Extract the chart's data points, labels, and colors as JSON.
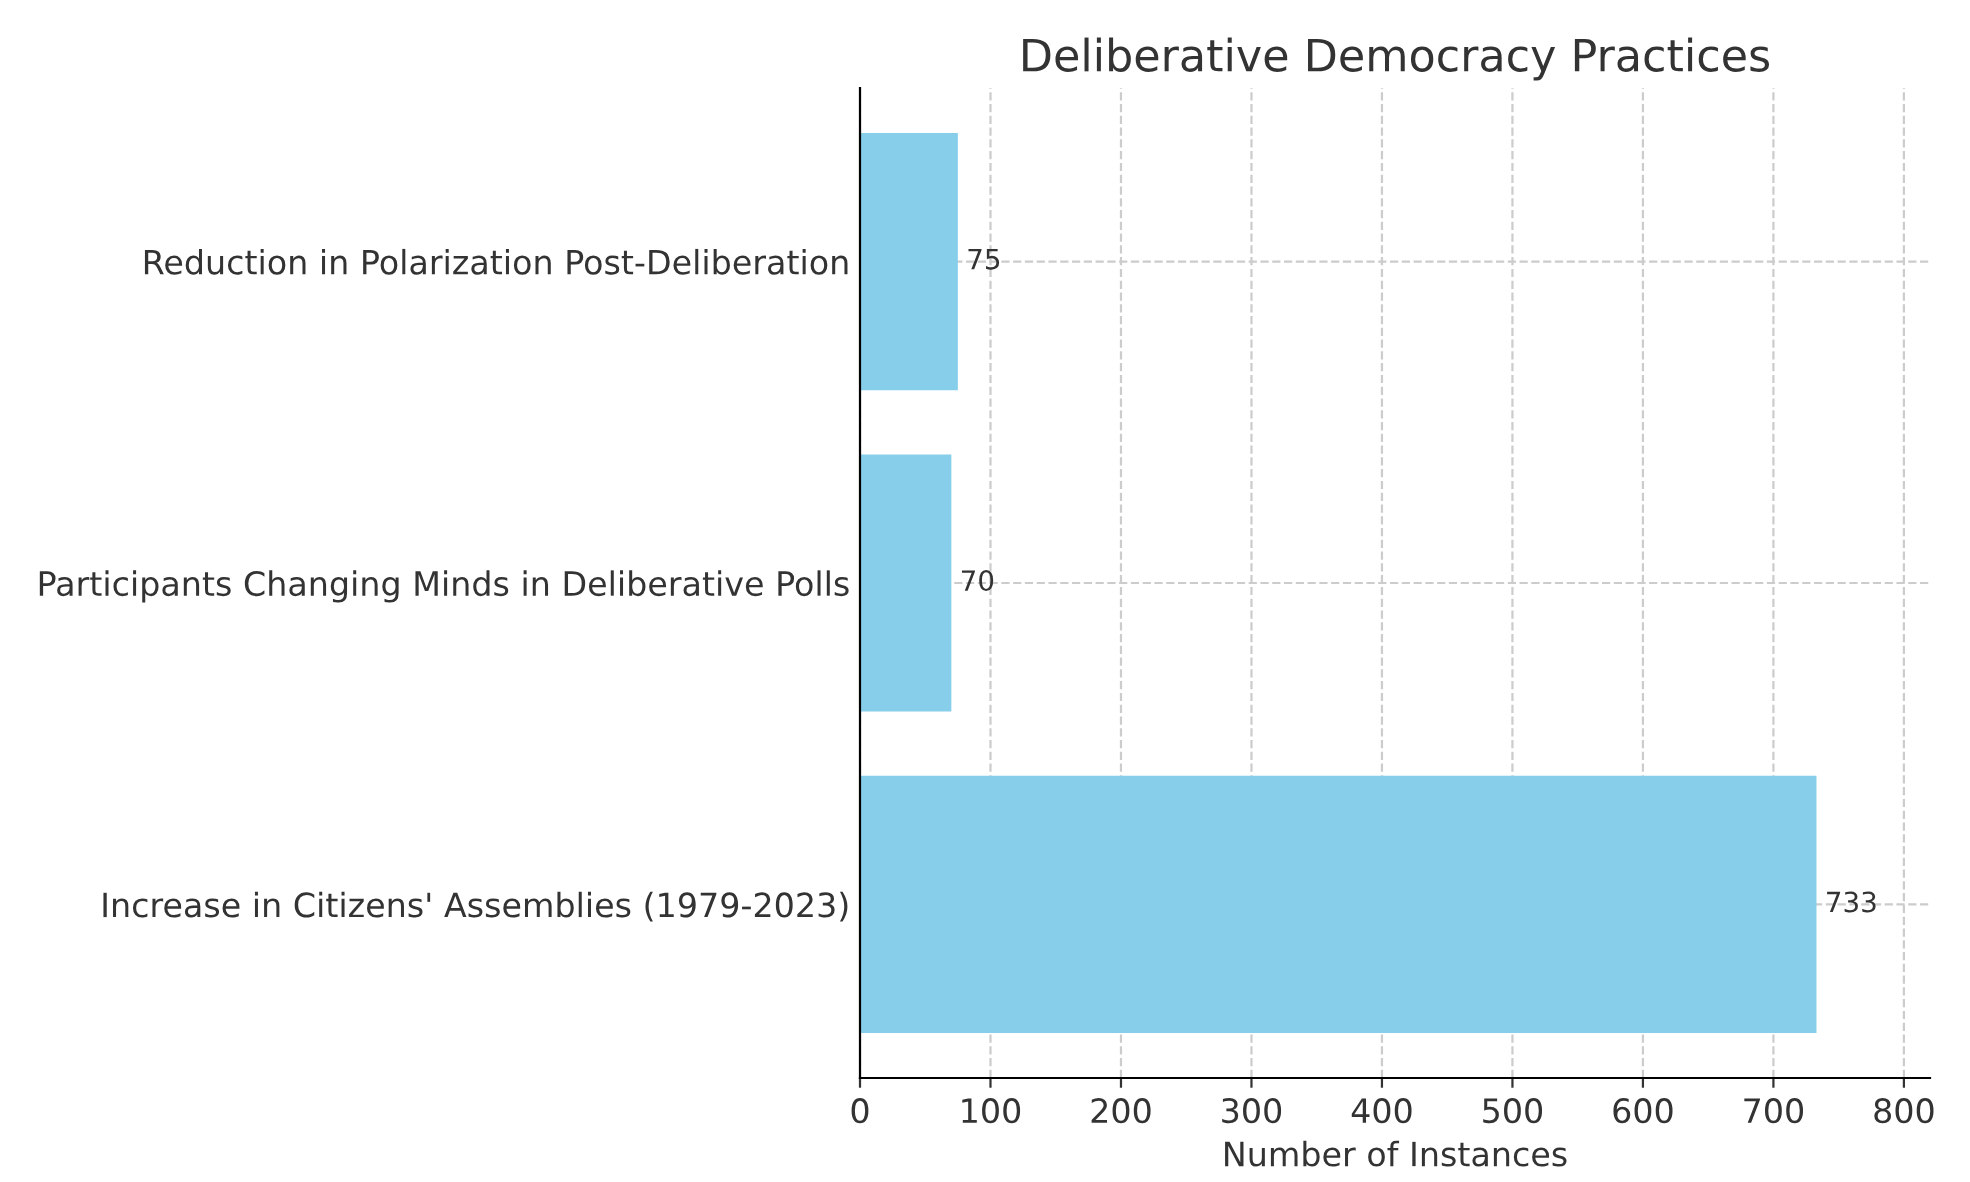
{
  "chart_data": {
    "type": "bar",
    "orientation": "horizontal",
    "title": "Deliberative Democracy Practices",
    "xlabel": "Number of Instances",
    "categories": [
      "Reduction in Polarization Post-Deliberation",
      "Participants Changing Minds in Deliberative Polls",
      "Increase in Citizens' Assemblies (1979-2023)"
    ],
    "values": [
      75,
      70,
      733
    ],
    "color": "#87ceeb",
    "data_labels": true,
    "grid": true,
    "line_style": "dashed",
    "xlim": [
      0,
      820
    ],
    "xticks": [
      0,
      100,
      200,
      300,
      400,
      500,
      600,
      700,
      800
    ]
  }
}
